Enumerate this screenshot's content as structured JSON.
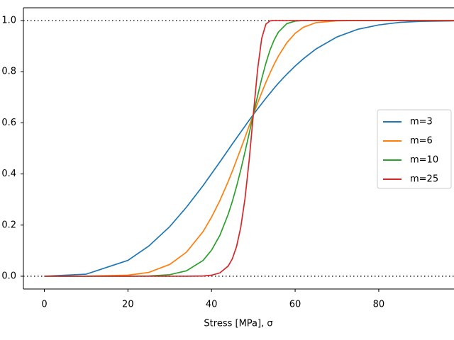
{
  "chart_data": {
    "type": "line",
    "xlabel": "Stress [MPa], σ",
    "x": [
      0,
      10,
      20,
      25,
      30,
      34,
      38,
      40,
      42,
      44,
      45,
      46,
      47,
      48,
      49,
      50,
      51,
      52,
      53,
      54,
      55,
      56,
      58,
      60,
      62,
      65,
      70,
      75,
      80,
      85,
      90,
      98
    ],
    "series": [
      {
        "name": "m=3",
        "color": "#1f77b4",
        "values": [
          0,
          0.008,
          0.062,
          0.118,
          0.194,
          0.27,
          0.355,
          0.401,
          0.447,
          0.494,
          0.518,
          0.541,
          0.564,
          0.587,
          0.61,
          0.632,
          0.654,
          0.675,
          0.696,
          0.716,
          0.736,
          0.755,
          0.79,
          0.822,
          0.851,
          0.889,
          0.936,
          0.966,
          0.983,
          0.993,
          0.997,
          0.999
        ]
      },
      {
        "name": "m=6",
        "color": "#ff7f0e",
        "values": [
          0,
          0.0001,
          0.004,
          0.015,
          0.046,
          0.094,
          0.175,
          0.231,
          0.296,
          0.371,
          0.412,
          0.455,
          0.498,
          0.543,
          0.588,
          0.632,
          0.676,
          0.718,
          0.758,
          0.795,
          0.83,
          0.861,
          0.913,
          0.95,
          0.974,
          0.992,
          0.999,
          1,
          1,
          1,
          1,
          1
        ]
      },
      {
        "name": "m=10",
        "color": "#2ca02c",
        "values": [
          0,
          0,
          0.0001,
          0.001,
          0.006,
          0.021,
          0.062,
          0.102,
          0.16,
          0.243,
          0.294,
          0.352,
          0.416,
          0.486,
          0.558,
          0.632,
          0.704,
          0.772,
          0.833,
          0.885,
          0.925,
          0.955,
          0.988,
          0.998,
          1,
          1,
          1,
          1,
          1,
          1,
          1,
          1
        ]
      },
      {
        "name": "m=25",
        "color": "#d62728",
        "values": [
          0,
          0,
          0,
          0,
          0,
          0,
          0.001,
          0.004,
          0.013,
          0.04,
          0.069,
          0.117,
          0.192,
          0.303,
          0.453,
          0.632,
          0.806,
          0.93,
          0.986,
          0.999,
          1,
          1,
          1,
          1,
          1,
          1,
          1,
          1,
          1,
          1,
          1,
          1
        ]
      }
    ],
    "hlines": [
      0,
      1
    ],
    "xlim": [
      -5,
      98
    ],
    "ylim": [
      -0.05,
      1.05
    ],
    "xticks": [
      0,
      20,
      40,
      60,
      80
    ],
    "yticks": [
      {
        "value": 0,
        "label": "0.0"
      },
      {
        "value": 0.2,
        "label": "0.2"
      },
      {
        "value": 0.4,
        "label": "0.4"
      },
      {
        "value": 0.6,
        "label": "0.6"
      },
      {
        "value": 0.8,
        "label": "0.8"
      },
      {
        "value": 1,
        "label": "1.0"
      }
    ],
    "legend": "right"
  }
}
